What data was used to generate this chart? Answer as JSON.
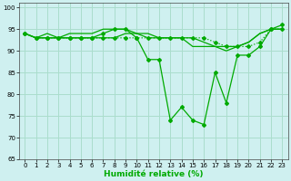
{
  "xlabel": "Humidité relative (%)",
  "background_color": "#cff0f0",
  "grid_color": "#aaddcc",
  "line_color": "#00aa00",
  "xlim": [
    -0.5,
    23.5
  ],
  "ylim": [
    65,
    101
  ],
  "yticks": [
    65,
    70,
    75,
    80,
    85,
    90,
    95,
    100
  ],
  "xticks": [
    0,
    1,
    2,
    3,
    4,
    5,
    6,
    7,
    8,
    9,
    10,
    11,
    12,
    13,
    14,
    15,
    16,
    17,
    18,
    19,
    20,
    21,
    22,
    23
  ],
  "series": [
    {
      "data": [
        94,
        93,
        93,
        93,
        93,
        93,
        93,
        94,
        95,
        95,
        93,
        88,
        88,
        74,
        77,
        74,
        73,
        85,
        78,
        89,
        89,
        91,
        95,
        96
      ],
      "linestyle": "-",
      "marker": true
    },
    {
      "data": [
        94,
        93,
        93,
        93,
        94,
        94,
        94,
        95,
        95,
        95,
        94,
        93,
        93,
        93,
        93,
        91,
        91,
        91,
        91,
        91,
        92,
        94,
        95,
        95
      ],
      "linestyle": "-",
      "marker": false
    },
    {
      "data": [
        94,
        93,
        94,
        93,
        93,
        93,
        93,
        93,
        93,
        94,
        94,
        94,
        93,
        93,
        93,
        93,
        92,
        91,
        90,
        91,
        92,
        94,
        95,
        95
      ],
      "linestyle": "-",
      "marker": false
    },
    {
      "data": [
        94,
        93,
        93,
        93,
        93,
        93,
        93,
        93,
        93,
        93,
        93,
        93,
        93,
        93,
        93,
        93,
        93,
        92,
        91,
        91,
        91,
        92,
        95,
        95
      ],
      "linestyle": ":",
      "marker": true
    }
  ]
}
